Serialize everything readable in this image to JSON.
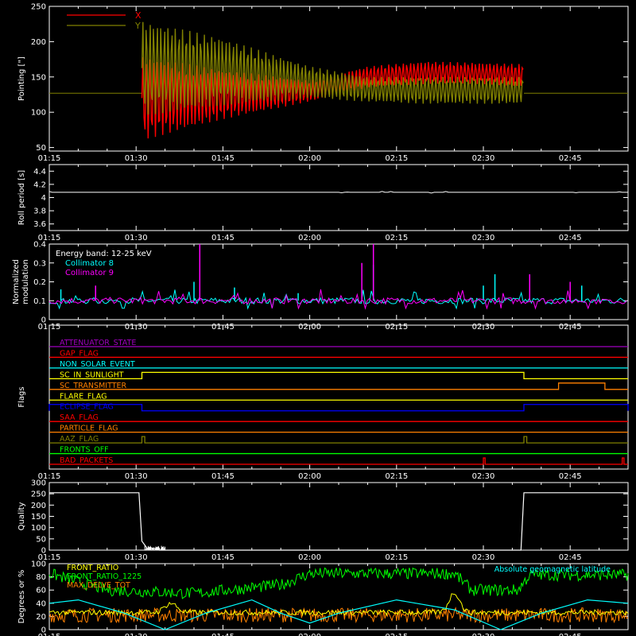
{
  "colors": {
    "background": "#000000",
    "foreground": "#ffffff",
    "red": "#ff0000",
    "olive": "#808000",
    "cyan": "#00ffff",
    "magenta": "#ff00ff",
    "white": "#ffffff",
    "green": "#00ff00",
    "orange": "#ff8000",
    "yellow": "#ffff00",
    "blue": "#0000ff",
    "flag_red": "#ff0000",
    "purple": "#a000c0"
  },
  "time_ticks": [
    "01:15",
    "01:30",
    "01:45",
    "02:00",
    "02:15",
    "02:30",
    "02:45"
  ],
  "chart_data": [
    {
      "type": "line",
      "id": "pointing",
      "ylabel": "Pointing [\"]",
      "ylim": [
        45,
        250
      ],
      "yticks": [
        50,
        100,
        150,
        200,
        250
      ],
      "x_unit": "UT",
      "legend_position": "top-left",
      "series": [
        {
          "name": "X",
          "color": "#ff0000",
          "points": [
            [
              "01:15",
              127
            ],
            [
              "01:30",
              127
            ],
            [
              "01:31",
              60
            ],
            [
              "01:45",
              90
            ],
            [
              "02:00",
              130
            ],
            [
              "02:10",
              150
            ],
            [
              "02:20",
              165
            ],
            [
              "02:30",
              165
            ],
            [
              "02:37",
              162
            ],
            [
              "02:38",
              127
            ],
            [
              "02:55",
              127
            ]
          ],
          "envelope": [
            [
              "01:31",
              60,
              180
            ],
            [
              "01:45",
              90,
              160
            ],
            [
              "02:00",
              115,
              145
            ],
            [
              "02:10",
              135,
              165
            ],
            [
              "02:20",
              140,
              172
            ],
            [
              "02:30",
              140,
              170
            ],
            [
              "02:37",
              135,
              168
            ]
          ]
        },
        {
          "name": "Y",
          "color": "#808000",
          "points": [
            [
              "01:15",
              127
            ],
            [
              "01:30",
              127
            ],
            [
              "01:31",
              230
            ],
            [
              "01:45",
              200
            ],
            [
              "02:00",
              150
            ],
            [
              "02:10",
              140
            ],
            [
              "02:20",
              135
            ],
            [
              "02:30",
              135
            ],
            [
              "02:37",
              135
            ],
            [
              "02:38",
              127
            ],
            [
              "02:55",
              127
            ]
          ],
          "envelope": [
            [
              "01:31",
              95,
              230
            ],
            [
              "01:45",
              110,
              205
            ],
            [
              "02:00",
              120,
              165
            ],
            [
              "02:10",
              115,
              150
            ],
            [
              "02:20",
              112,
              150
            ],
            [
              "02:30",
              112,
              150
            ],
            [
              "02:37",
              112,
              150
            ]
          ]
        }
      ]
    },
    {
      "type": "line",
      "id": "roll",
      "ylabel": "Roll period [s]",
      "ylim": [
        3.5,
        4.5
      ],
      "yticks": [
        3.6,
        3.8,
        4.0,
        4.2,
        4.4
      ],
      "series": [
        {
          "name": "",
          "color": "#ffffff",
          "points": [
            [
              "01:15",
              4.08
            ],
            [
              "02:55",
              4.08
            ]
          ]
        }
      ]
    },
    {
      "type": "line",
      "id": "modulation",
      "ylabel": "Normalized modulation",
      "ylim": [
        0.0,
        0.4
      ],
      "yticks": [
        0.0,
        0.1,
        0.2,
        0.3,
        0.4
      ],
      "annotation": "Energy band: 12-25 keV",
      "series": [
        {
          "name": "Collimator 8",
          "color": "#00ffff",
          "baseline": 0.1,
          "spikes": [
            [
              "01:17",
              0.16
            ],
            [
              "01:40",
              0.2
            ],
            [
              "01:47",
              0.17
            ],
            [
              "01:58",
              0.14
            ],
            [
              "02:11",
              0.29
            ],
            [
              "02:30",
              0.18
            ],
            [
              "02:32",
              0.24
            ],
            [
              "02:38",
              0.18
            ],
            [
              "02:47",
              0.18
            ]
          ]
        },
        {
          "name": "Collimator 9",
          "color": "#ff00ff",
          "baseline": 0.1,
          "spikes": [
            [
              "01:23",
              0.18
            ],
            [
              "01:41",
              0.4
            ],
            [
              "02:09",
              0.3
            ],
            [
              "02:11",
              0.4
            ],
            [
              "02:38",
              0.24
            ],
            [
              "02:45",
              0.2
            ]
          ]
        }
      ]
    },
    {
      "type": "flags",
      "id": "flags",
      "ylabel": "Flags",
      "series": [
        {
          "name": "ATTENUATOR_STATE",
          "color": "#a000c0",
          "steps": []
        },
        {
          "name": "GAP_FLAG",
          "color": "#ff0000",
          "steps": []
        },
        {
          "name": "NON_SOLAR_EVENT",
          "color": "#00ffff",
          "steps": []
        },
        {
          "name": "SC_IN_SUNLIGHT",
          "color": "#ffff00",
          "steps": [
            [
              "01:31",
              "02:37"
            ]
          ]
        },
        {
          "name": "SC_TRANSMITTER",
          "color": "#ff8000",
          "steps": [
            [
              "02:43",
              "02:51"
            ]
          ]
        },
        {
          "name": "FLARE_FLAG",
          "color": "#ffff00",
          "steps": []
        },
        {
          "name": "ECLIPSE_FLAG",
          "color": "#0000ff",
          "steps": [
            [
              "01:15",
              "01:31"
            ],
            [
              "02:37",
              "02:55"
            ]
          ]
        },
        {
          "name": "SAA_FLAG",
          "color": "#ff0000",
          "steps": []
        },
        {
          "name": "PARTICLE_FLAG",
          "color": "#ff8000",
          "steps": []
        },
        {
          "name": "AAZ_FLAG",
          "color": "#808000",
          "steps": [
            [
              "01:31",
              "01:31.5"
            ],
            [
              "02:37",
              "02:37.5"
            ]
          ]
        },
        {
          "name": "FRONTS_OFF",
          "color": "#00ff00",
          "steps": []
        },
        {
          "name": "BAD_PACKETS",
          "color": "#ff0000",
          "steps": [
            [
              "02:30",
              "02:30.3"
            ],
            [
              "02:54",
              "02:54.3"
            ]
          ]
        }
      ]
    },
    {
      "type": "line",
      "id": "quality",
      "ylabel": "Quality",
      "ylim": [
        0,
        300
      ],
      "yticks": [
        0,
        50,
        100,
        150,
        200,
        250,
        300
      ],
      "series": [
        {
          "name": "",
          "color": "#ffffff",
          "points": [
            [
              "01:15",
              255
            ],
            [
              "01:30.5",
              255
            ],
            [
              "01:31",
              40
            ],
            [
              "01:32",
              5
            ],
            [
              "01:33",
              10
            ],
            [
              "01:34",
              0
            ],
            [
              "02:36.5",
              0
            ],
            [
              "02:37",
              255
            ],
            [
              "02:55",
              255
            ]
          ]
        }
      ]
    },
    {
      "type": "line",
      "id": "ratios",
      "ylabel": "Degrees or %",
      "ylim": [
        0,
        100
      ],
      "yticks": [
        0,
        20,
        40,
        60,
        80,
        100
      ],
      "series": [
        {
          "name": "FRONT_RATIO",
          "color": "#ffff00",
          "legend_position": "top-left"
        },
        {
          "name": "FRONT_RATIO_1225",
          "color": "#00ff00",
          "legend_position": "top-left",
          "levels": [
            [
              "01:15",
              85
            ],
            [
              "01:25",
              60
            ],
            [
              "01:40",
              55
            ],
            [
              "01:55",
              68
            ],
            [
              "02:00",
              85
            ],
            [
              "02:12",
              85
            ],
            [
              "02:25",
              85
            ],
            [
              "02:28",
              60
            ],
            [
              "02:36",
              60
            ],
            [
              "02:38",
              83
            ],
            [
              "02:55",
              83
            ]
          ]
        },
        {
          "name": "MAX_DELVE_TOT",
          "color": "#ff8000",
          "legend_position": "top-left"
        },
        {
          "name": "Absolute geomagnetic latitude",
          "color": "#00ffff",
          "legend_position": "top-right",
          "points": [
            [
              "01:15",
              40
            ],
            [
              "01:20",
              45
            ],
            [
              "01:28",
              25
            ],
            [
              "01:35",
              0
            ],
            [
              "01:42",
              25
            ],
            [
              "01:50",
              45
            ],
            [
              "01:55",
              25
            ],
            [
              "02:00",
              10
            ],
            [
              "02:05",
              25
            ],
            [
              "02:15",
              45
            ],
            [
              "02:25",
              30
            ],
            [
              "02:33",
              0
            ],
            [
              "02:40",
              25
            ],
            [
              "02:48",
              45
            ],
            [
              "02:55",
              40
            ]
          ]
        }
      ]
    }
  ]
}
